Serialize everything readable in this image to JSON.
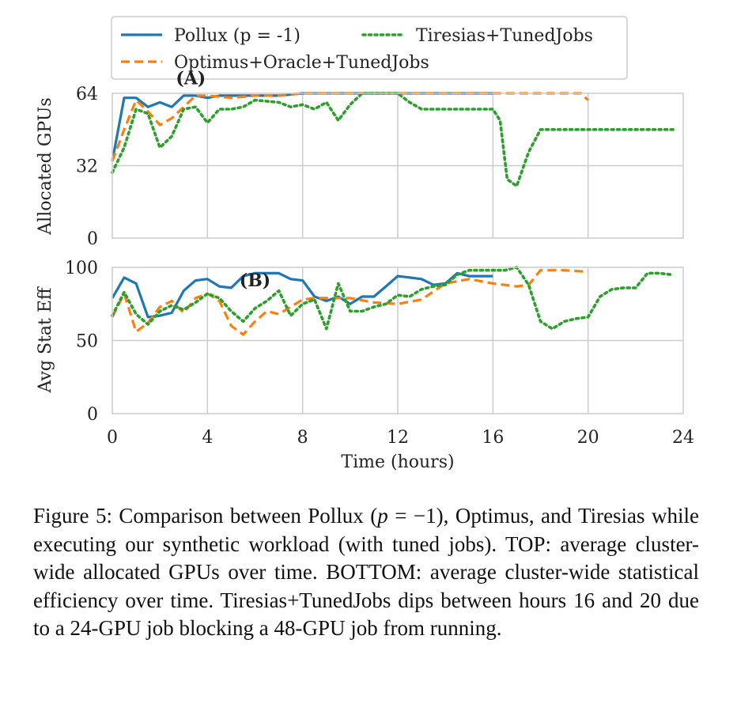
{
  "chart_data": [
    {
      "type": "line",
      "ylabel": "Allocated GPUs",
      "xlabel": "",
      "xlim": [
        0,
        24
      ],
      "ylim": [
        0,
        64
      ],
      "yticks": [
        0,
        32,
        64
      ],
      "grid": true,
      "annotation": "(A)",
      "series": [
        {
          "name": "Pollux (p = -1)",
          "color": "#1f77b4",
          "dash": "solid",
          "x": [
            0,
            0.5,
            1,
            1.5,
            2,
            2.5,
            3,
            3.5,
            4,
            4.5,
            5,
            6,
            7,
            8,
            9,
            10,
            11,
            12,
            13,
            14,
            15,
            16
          ],
          "y": [
            34,
            62,
            62,
            58,
            60,
            58,
            63,
            63,
            62,
            63,
            63,
            63,
            63,
            64,
            64,
            64,
            64,
            64,
            64,
            64,
            64,
            64
          ]
        },
        {
          "name": "Optimus+Oracle+TunedJobs",
          "color": "#ff7f0e",
          "dash": "dashed",
          "x": [
            0,
            0.5,
            1,
            1.5,
            2,
            2.5,
            3,
            3.5,
            4,
            5,
            6,
            7,
            8,
            9,
            10,
            11,
            12,
            13,
            14,
            15,
            16,
            17,
            18,
            19,
            19.7,
            20
          ],
          "y": [
            34,
            48,
            61,
            56,
            50,
            53,
            58,
            63,
            63,
            62,
            63,
            63,
            64,
            64,
            64,
            64,
            64,
            64,
            64,
            64,
            64,
            64,
            64,
            64,
            64,
            61
          ]
        },
        {
          "name": "Tiresias+TunedJobs",
          "color": "#2ca02c",
          "dash": "dotted",
          "x": [
            0,
            0.5,
            1,
            1.5,
            2,
            2.5,
            3,
            3.5,
            4,
            4.5,
            5,
            5.5,
            6,
            7,
            7.5,
            8,
            8.5,
            9,
            9.5,
            10,
            10.5,
            11,
            12,
            12.5,
            13,
            14,
            15,
            16,
            16.3,
            16.6,
            17,
            17.5,
            18,
            19,
            20,
            21,
            22,
            23,
            23.6
          ],
          "y": [
            29,
            40,
            57,
            55,
            40,
            45,
            57,
            58,
            51,
            57,
            57,
            58,
            61,
            60,
            58,
            59,
            57,
            60,
            52,
            59,
            64,
            64,
            64,
            60,
            57,
            57,
            57,
            57,
            52,
            26,
            23,
            38,
            48,
            48,
            48,
            48,
            48,
            48,
            48
          ]
        }
      ]
    },
    {
      "type": "line",
      "ylabel": "Avg Stat Eff",
      "xlabel": "Time (hours)",
      "xlim": [
        0,
        24
      ],
      "ylim": [
        0,
        100
      ],
      "xticks": [
        0,
        4,
        8,
        12,
        16,
        20,
        24
      ],
      "yticks": [
        0,
        50,
        100
      ],
      "grid": true,
      "annotation": "(B)",
      "series": [
        {
          "name": "Pollux (p = -1)",
          "color": "#1f77b4",
          "dash": "solid",
          "x": [
            0,
            0.5,
            1,
            1.5,
            2,
            2.5,
            3,
            3.5,
            4,
            4.5,
            5,
            5.5,
            6,
            6.5,
            7,
            7.5,
            8,
            8.5,
            9,
            9.5,
            10,
            10.5,
            11,
            11.5,
            12,
            12.5,
            13,
            13.5,
            14,
            14.5,
            15,
            15.5,
            16
          ],
          "y": [
            79,
            93,
            89,
            66,
            67,
            69,
            84,
            91,
            92,
            87,
            86,
            94,
            96,
            96,
            96,
            92,
            91,
            80,
            77,
            80,
            75,
            80,
            80,
            87,
            94,
            93,
            92,
            88,
            89,
            96,
            94,
            94,
            94
          ]
        },
        {
          "name": "Optimus+Oracle+TunedJobs",
          "color": "#ff7f0e",
          "dash": "dashed",
          "x": [
            0,
            0.5,
            1,
            1.5,
            2,
            2.5,
            3,
            3.5,
            4,
            4.5,
            5,
            5.5,
            6,
            6.5,
            7,
            7.5,
            8,
            8.5,
            9,
            10,
            11,
            12,
            13,
            14,
            15,
            16,
            17,
            17.5,
            18,
            19,
            20
          ],
          "y": [
            66,
            82,
            56,
            62,
            73,
            77,
            69,
            79,
            82,
            77,
            60,
            54,
            63,
            70,
            68,
            73,
            78,
            79,
            79,
            79,
            76,
            75,
            78,
            89,
            92,
            89,
            87,
            88,
            98,
            98,
            97
          ]
        },
        {
          "name": "Tiresias+TunedJobs",
          "color": "#2ca02c",
          "dash": "dotted",
          "x": [
            0,
            0.5,
            1,
            1.5,
            2,
            2.5,
            3,
            3.5,
            4,
            4.5,
            5,
            5.5,
            6,
            6.5,
            7,
            7.5,
            8,
            8.5,
            9,
            9.5,
            10,
            10.5,
            11,
            11.5,
            12,
            12.5,
            13,
            13.5,
            14,
            14.5,
            15,
            15.5,
            16,
            16.5,
            17,
            17.5,
            18,
            18.5,
            19,
            19.5,
            20,
            20.5,
            21,
            21.5,
            22,
            22.5,
            23,
            23.5
          ],
          "y": [
            67,
            83,
            68,
            61,
            70,
            74,
            71,
            76,
            82,
            79,
            70,
            63,
            72,
            77,
            84,
            67,
            75,
            78,
            58,
            89,
            70,
            70,
            73,
            75,
            81,
            80,
            85,
            87,
            88,
            95,
            98,
            98,
            98,
            98,
            100,
            88,
            63,
            58,
            63,
            65,
            66,
            80,
            85,
            86,
            86,
            96,
            96,
            95
          ]
        }
      ]
    }
  ],
  "legend": [
    {
      "label": "Pollux (p = -1)",
      "color": "#1f77b4",
      "dash": "solid"
    },
    {
      "label": "Tiresias+TunedJobs",
      "color": "#2ca02c",
      "dash": "dotted"
    },
    {
      "label": "Optimus+Oracle+TunedJobs",
      "color": "#ff7f0e",
      "dash": "dashed"
    }
  ],
  "caption": {
    "label": "Figure 5:",
    "line1_a": "Comparison between Pollux (",
    "p_var": "p",
    "line1_b": " = −1), Optimus, and",
    "rest": "Tiresias while executing our synthetic workload (with tuned jobs). TOP: average cluster-wide allocated GPUs over time. BOTTOM: average cluster-wide statistical efficiency over time. Tiresias+TunedJobs dips between hours 16 and 20 due to a 24-GPU job blocking a 48-GPU job from running."
  }
}
